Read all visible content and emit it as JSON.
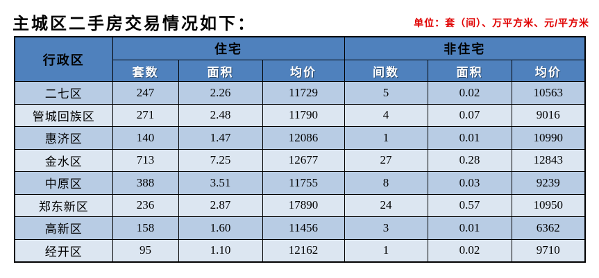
{
  "title": "主城区二手房交易情况如下：",
  "unit_note": "单位：套（间）、万平方米、元/平方米",
  "colors": {
    "header_bg": "#4f81bd",
    "row_odd_bg": "#b8cce4",
    "row_even_bg": "#dce6f1",
    "unit_text": "#e00000",
    "border": "#000000"
  },
  "table": {
    "district_header": "行政区",
    "group_headers": [
      "住宅",
      "非住宅"
    ],
    "sub_headers": [
      "套数",
      "面积",
      "均价",
      "间数",
      "面积",
      "均价"
    ],
    "rows": [
      {
        "district": "二七区",
        "values": [
          "247",
          "2.26",
          "11729",
          "5",
          "0.02",
          "10563"
        ]
      },
      {
        "district": "管城回族区",
        "values": [
          "271",
          "2.48",
          "11790",
          "4",
          "0.07",
          "9016"
        ]
      },
      {
        "district": "惠济区",
        "values": [
          "140",
          "1.47",
          "12086",
          "1",
          "0.01",
          "10990"
        ]
      },
      {
        "district": "金水区",
        "values": [
          "713",
          "7.25",
          "12677",
          "27",
          "0.28",
          "12843"
        ]
      },
      {
        "district": "中原区",
        "values": [
          "388",
          "3.51",
          "11755",
          "8",
          "0.03",
          "9239"
        ]
      },
      {
        "district": "郑东新区",
        "values": [
          "236",
          "2.87",
          "17890",
          "24",
          "0.57",
          "10950"
        ]
      },
      {
        "district": "高新区",
        "values": [
          "158",
          "1.60",
          "11456",
          "3",
          "0.01",
          "6362"
        ]
      },
      {
        "district": "经开区",
        "values": [
          "95",
          "1.10",
          "12162",
          "1",
          "0.02",
          "9710"
        ]
      }
    ]
  }
}
